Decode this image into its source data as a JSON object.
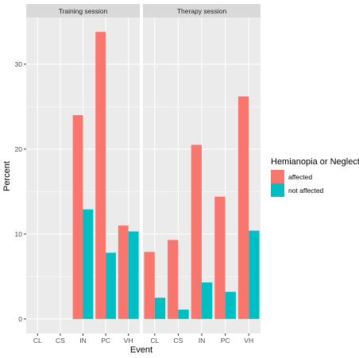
{
  "chart_data": {
    "type": "bar",
    "categories": [
      "CL",
      "CS",
      "IN",
      "PC",
      "VH"
    ],
    "facets": [
      {
        "name": "Training session",
        "series": [
          {
            "name": "affected",
            "values": [
              0,
              0,
              24.0,
              33.8,
              11.0
            ]
          },
          {
            "name": "not affected",
            "values": [
              0,
              0,
              12.9,
              7.8,
              10.3
            ]
          }
        ]
      },
      {
        "name": "Therapy session",
        "series": [
          {
            "name": "affected",
            "values": [
              7.9,
              9.3,
              20.5,
              14.4,
              26.2
            ]
          },
          {
            "name": "not affected",
            "values": [
              2.5,
              1.1,
              4.3,
              3.2,
              10.4
            ]
          }
        ]
      }
    ],
    "xlabel": "Event",
    "ylabel": "Percent",
    "ylim": [
      -1.7,
      35.5
    ],
    "yticks": [
      0,
      10,
      20,
      30
    ],
    "legend": {
      "title": "Hemianopia or Neglect",
      "position": "right",
      "entries": [
        "affected",
        "not affected"
      ]
    },
    "colors": {
      "affected": "#F8766D",
      "not affected": "#00BFC4",
      "panel": "#EBEBEB",
      "strip": "#D9D9D9",
      "grid": "#FFFFFF",
      "text": "#4D4D4D"
    },
    "grid": true
  }
}
